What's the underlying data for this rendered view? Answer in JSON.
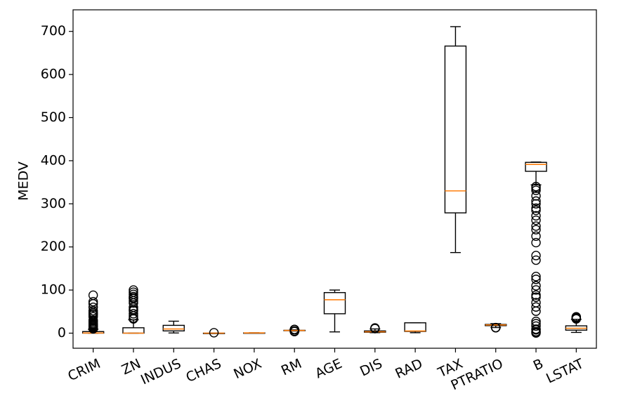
{
  "chart_data": {
    "type": "box",
    "title": "",
    "xlabel": "",
    "ylabel": "MEDV",
    "ylim": [
      -35,
      750
    ],
    "yticks": [
      0,
      100,
      200,
      300,
      400,
      500,
      600,
      700
    ],
    "grid": false,
    "legend": "none",
    "colors": {
      "box": "#000000",
      "median": "#ff7f0e",
      "flier": "#000000",
      "background": "#ffffff"
    },
    "categories": [
      "CRIM",
      "ZN",
      "INDUS",
      "CHAS",
      "NOX",
      "RM",
      "AGE",
      "DIS",
      "RAD",
      "TAX",
      "PTRATIO",
      "B",
      "LSTAT"
    ],
    "boxes": [
      {
        "name": "CRIM",
        "whislo": 0.01,
        "q1": 0.08,
        "med": 0.26,
        "q3": 3.68,
        "whishi": 9.0,
        "fliers": [
          10,
          12,
          14,
          16,
          18,
          20,
          22,
          25,
          28,
          30,
          38,
          42,
          45,
          48,
          52,
          60,
          68,
          73,
          88
        ]
      },
      {
        "name": "ZN",
        "whislo": 0,
        "q1": 0,
        "med": 0,
        "q3": 12.5,
        "whishi": 31.0,
        "fliers": [
          33,
          35,
          40,
          45,
          52,
          55,
          60,
          70,
          75,
          80,
          82,
          85,
          90,
          95,
          100
        ]
      },
      {
        "name": "INDUS",
        "whislo": 0.46,
        "q1": 5.19,
        "med": 9.69,
        "q3": 18.1,
        "whishi": 27.74,
        "fliers": []
      },
      {
        "name": "CHAS",
        "whislo": 0,
        "q1": 0,
        "med": 0,
        "q3": 0,
        "whishi": 0,
        "fliers": [
          1
        ]
      },
      {
        "name": "NOX",
        "whislo": 0.385,
        "q1": 0.449,
        "med": 0.538,
        "q3": 0.624,
        "whishi": 0.871,
        "fliers": []
      },
      {
        "name": "RM",
        "whislo": 4.9,
        "q1": 5.89,
        "med": 6.21,
        "q3": 6.62,
        "whishi": 7.7,
        "fliers": [
          3.56,
          3.86,
          4.14,
          4.37,
          4.5,
          7.8,
          8.0,
          8.25,
          8.4,
          8.7
        ]
      },
      {
        "name": "AGE",
        "whislo": 2.9,
        "q1": 45.0,
        "med": 77.5,
        "q3": 94.1,
        "whishi": 100,
        "fliers": []
      },
      {
        "name": "DIS",
        "whislo": 1.13,
        "q1": 2.1,
        "med": 3.2,
        "q3": 5.19,
        "whishi": 9.82,
        "fliers": [
          10.59,
          10.71,
          12.13
        ]
      },
      {
        "name": "RAD",
        "whislo": 1,
        "q1": 4,
        "med": 5,
        "q3": 24,
        "whishi": 24,
        "fliers": []
      },
      {
        "name": "TAX",
        "whislo": 187,
        "q1": 279,
        "med": 330,
        "q3": 666,
        "whishi": 711,
        "fliers": []
      },
      {
        "name": "PTRATIO",
        "whislo": 13.0,
        "q1": 17.4,
        "med": 19.05,
        "q3": 20.2,
        "whishi": 22.0,
        "fliers": [
          12.6,
          12.6,
          13.0
        ]
      },
      {
        "name": "B",
        "whislo": 344.0,
        "q1": 375.4,
        "med": 391.4,
        "q3": 396.2,
        "whishi": 396.9,
        "fliers": [
          0.32,
          2.6,
          3.5,
          7.68,
          9.3,
          16.45,
          22.0,
          27.3,
          50.9,
          60.7,
          70.8,
          83.5,
          88.3,
          100.2,
          109.9,
          124.8,
          131.4,
          169.3,
          180.0,
          210.0,
          225.0,
          240.0,
          248.3,
          261.95,
          272.2,
          285.0,
          290.0,
          300.0,
          306.4,
          318.4,
          331.3,
          336.2,
          340.0
        ]
      },
      {
        "name": "LSTAT",
        "whislo": 1.73,
        "q1": 6.95,
        "med": 11.36,
        "q3": 16.96,
        "whishi": 31.99,
        "fliers": [
          33.0,
          34.0,
          34.4,
          34.8,
          36.98,
          37.97
        ]
      }
    ]
  }
}
